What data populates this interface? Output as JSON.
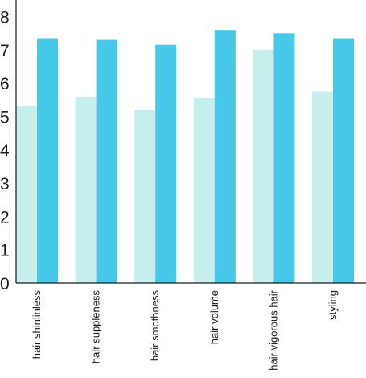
{
  "chart_data": {
    "type": "bar",
    "title": "",
    "xlabel": "",
    "ylabel": "",
    "ylim": [
      0,
      8.5
    ],
    "yticks": [
      0,
      1,
      2,
      3,
      4,
      5,
      6,
      7,
      8
    ],
    "grid": false,
    "legend": "none",
    "categories": [
      "hair shinlinless",
      "hair suppleness",
      "hair smothness",
      "hair volume",
      "hair vigorous hair",
      "styling"
    ],
    "series": [
      {
        "color": "#c5eeec",
        "values": [
          5.3,
          5.6,
          5.2,
          5.55,
          7.0,
          5.75
        ]
      },
      {
        "color": "#46c8e8",
        "values": [
          7.35,
          7.3,
          7.15,
          7.6,
          7.5,
          7.35
        ]
      }
    ],
    "axis_color": "#1a1a1a"
  }
}
